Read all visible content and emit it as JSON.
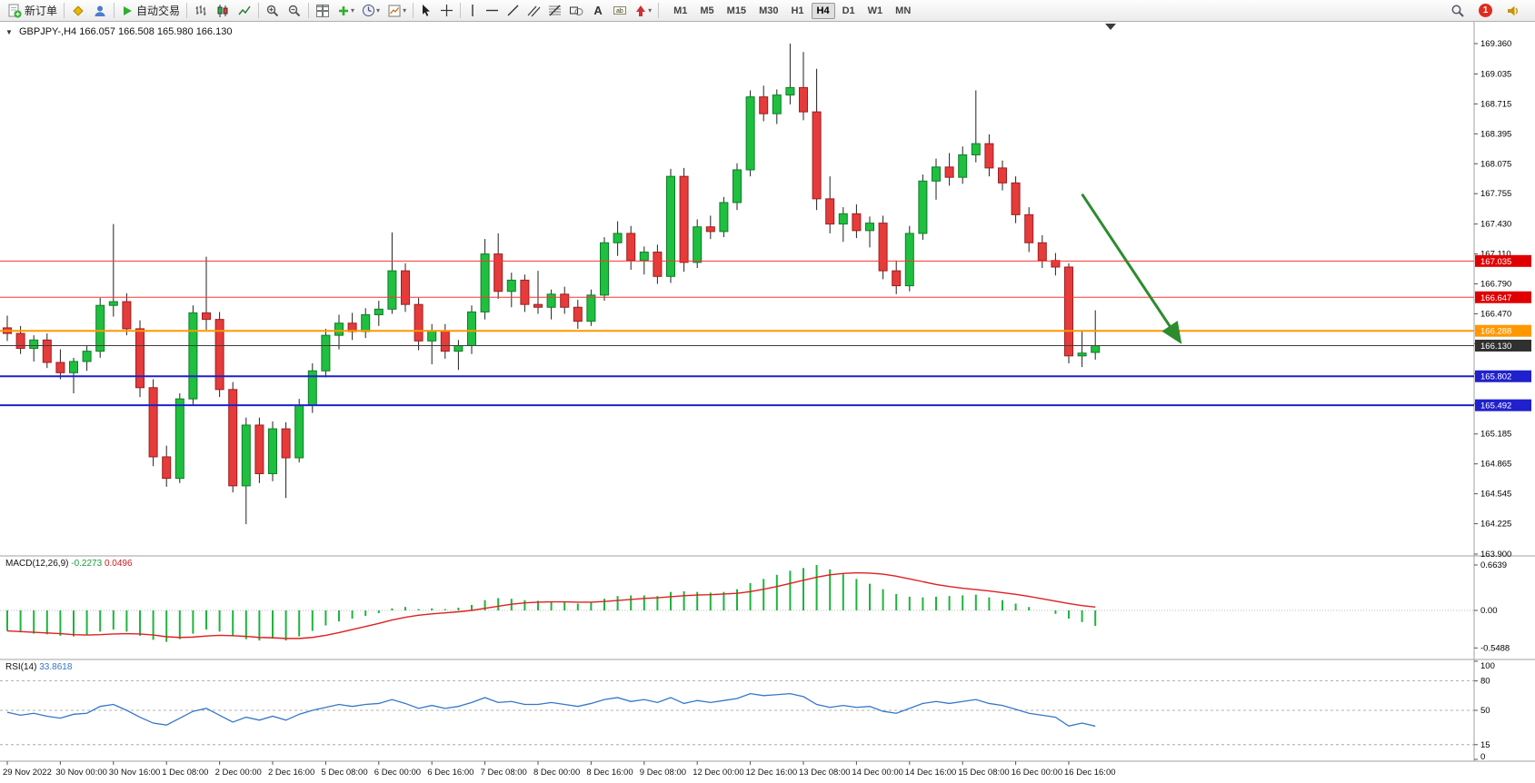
{
  "toolbar": {
    "groups": [
      {
        "items": [
          {
            "name": "new-order-button",
            "icon": "doc-plus",
            "label": "新订单"
          }
        ]
      },
      {
        "items": [
          {
            "name": "metaeditor-icon",
            "icon": "diamond"
          },
          {
            "name": "profiles-icon",
            "icon": "profile"
          }
        ]
      },
      {
        "items": [
          {
            "name": "autotrading-button",
            "icon": "play",
            "label": "自动交易"
          }
        ]
      },
      {
        "items": [
          {
            "name": "bar-chart-icon",
            "icon": "bars"
          },
          {
            "name": "candlestick-chart-icon",
            "icon": "candles"
          },
          {
            "name": "line-chart-icon",
            "icon": "linechart"
          }
        ]
      },
      {
        "items": [
          {
            "name": "zoom-in-icon",
            "icon": "zoom-in"
          },
          {
            "name": "zoom-out-icon",
            "icon": "zoom-out"
          }
        ]
      },
      {
        "items": [
          {
            "name": "tile-windows-icon",
            "icon": "tile"
          },
          {
            "name": "indicators-icon",
            "icon": "plus-green",
            "caret": true
          },
          {
            "name": "periods-icon",
            "icon": "clock",
            "caret": true
          },
          {
            "name": "templates-icon",
            "icon": "template",
            "caret": true
          }
        ]
      },
      {
        "items": [
          {
            "name": "cursor-icon",
            "icon": "cursor"
          },
          {
            "name": "crosshair-icon",
            "icon": "crosshair"
          }
        ]
      },
      {
        "items": [
          {
            "name": "vertical-line-icon",
            "icon": "vline"
          },
          {
            "name": "horizontal-line-icon",
            "icon": "hline"
          },
          {
            "name": "trendline-icon",
            "icon": "tline"
          },
          {
            "name": "equidistant-channel-icon",
            "icon": "channel"
          },
          {
            "name": "fibonacci-icon",
            "icon": "fibo"
          },
          {
            "name": "shapes-icon",
            "icon": "shapes"
          },
          {
            "name": "text-icon",
            "icon": "textA"
          },
          {
            "name": "label-icon",
            "icon": "label"
          },
          {
            "name": "arrows-icon",
            "icon": "arrowstyle",
            "caret": true
          }
        ]
      }
    ],
    "timeframes": [
      "M1",
      "M5",
      "M15",
      "M30",
      "H1",
      "H4",
      "D1",
      "W1",
      "MN"
    ],
    "active_timeframe": "H4",
    "right": [
      {
        "name": "search-icon",
        "icon": "search"
      },
      {
        "name": "notification-badge",
        "badge": "1"
      },
      {
        "name": "alerts-icon",
        "icon": "speaker"
      }
    ]
  },
  "chart_data": {
    "type": "candlestick",
    "title": "GBPJPY-,H4",
    "ohlc_text": "166.057 166.508 165.980 166.130",
    "current_bar": {
      "open": 166.057,
      "high": 166.508,
      "low": 165.98,
      "close": 166.13
    },
    "colors": {
      "bull": "#1fbf3f",
      "bull_border": "#0e7d28",
      "bear": "#e53b3b",
      "bear_border": "#9e1f1f",
      "wick": "#222222",
      "signal_line": "#e02020",
      "macd_hist": "#1db53c",
      "rsi_line": "#3577c8",
      "arrow": "#2e8b2e",
      "resistance": "#ff3333",
      "support": "#2020cc",
      "pivot": "#ff9800",
      "price_line": "#3c3c3c"
    },
    "price_axis": {
      "max": 169.36,
      "min": 163.9,
      "ticks": [
        169.36,
        169.035,
        168.715,
        168.395,
        168.075,
        167.755,
        167.43,
        167.11,
        166.79,
        166.47,
        166.15,
        165.83,
        165.51,
        165.185,
        164.865,
        164.545,
        164.225,
        163.9
      ]
    },
    "hlines": [
      {
        "price": 167.035,
        "badge": "167.035",
        "color": "#ff3333",
        "width": 1,
        "badge_bg": "#e00000"
      },
      {
        "price": 166.647,
        "badge": "166.647",
        "color": "#ff3333",
        "width": 1,
        "badge_bg": "#e00000"
      },
      {
        "price": 166.288,
        "badge": "166.288",
        "color": "#ff9800",
        "width": 2,
        "badge_bg": "#ff9800"
      },
      {
        "price": 166.13,
        "badge": "166.130",
        "color": "#3c3c3c",
        "width": 1,
        "badge_bg": "#303030"
      },
      {
        "price": 165.802,
        "badge": "165.802",
        "color": "#2020cc",
        "width": 2,
        "badge_bg": "#2020cc"
      },
      {
        "price": 165.492,
        "badge": "165.492",
        "color": "#2020cc",
        "width": 2,
        "badge_bg": "#2020cc"
      }
    ],
    "trend_arrow": {
      "start_bar": 81,
      "start_price": 167.75,
      "end_bar": 88.4,
      "end_price": 166.17
    },
    "time_labels": [
      "29 Nov 2022",
      "30 Nov 00:00",
      "30 Nov 16:00",
      "1 Dec 08:00",
      "2 Dec 00:00",
      "2 Dec 16:00",
      "5 Dec 08:00",
      "6 Dec 00:00",
      "6 Dec 16:00",
      "7 Dec 08:00",
      "8 Dec 00:00",
      "8 Dec 16:00",
      "9 Dec 08:00",
      "12 Dec 00:00",
      "12 Dec 16:00",
      "13 Dec 08:00",
      "14 Dec 00:00",
      "14 Dec 16:00",
      "15 Dec 08:00",
      "16 Dec 00:00",
      "16 Dec 16:00"
    ],
    "candles": [
      [
        166.32,
        166.45,
        166.18,
        166.26
      ],
      [
        166.26,
        166.34,
        166.04,
        166.1
      ],
      [
        166.1,
        166.24,
        165.96,
        166.19
      ],
      [
        166.19,
        166.26,
        165.89,
        165.95
      ],
      [
        165.95,
        166.09,
        165.77,
        165.84
      ],
      [
        165.84,
        166.0,
        165.62,
        165.96
      ],
      [
        165.96,
        166.13,
        165.86,
        166.07
      ],
      [
        166.07,
        166.64,
        166.0,
        166.56
      ],
      [
        166.56,
        167.43,
        166.44,
        166.6
      ],
      [
        166.6,
        166.69,
        166.24,
        166.31
      ],
      [
        166.31,
        166.4,
        165.58,
        165.68
      ],
      [
        165.68,
        165.77,
        164.84,
        164.94
      ],
      [
        164.94,
        165.06,
        164.62,
        164.71
      ],
      [
        164.71,
        165.62,
        164.66,
        165.56
      ],
      [
        165.56,
        166.56,
        165.5,
        166.48
      ],
      [
        166.48,
        167.08,
        166.3,
        166.41
      ],
      [
        166.41,
        166.49,
        165.58,
        165.66
      ],
      [
        165.66,
        165.74,
        164.56,
        164.63
      ],
      [
        164.63,
        165.36,
        164.22,
        165.28
      ],
      [
        165.28,
        165.36,
        164.66,
        164.76
      ],
      [
        164.76,
        165.32,
        164.68,
        165.24
      ],
      [
        165.24,
        165.31,
        164.5,
        164.93
      ],
      [
        164.93,
        165.56,
        164.88,
        165.49
      ],
      [
        165.49,
        165.94,
        165.41,
        165.86
      ],
      [
        165.86,
        166.31,
        165.79,
        166.24
      ],
      [
        166.24,
        166.46,
        166.09,
        166.37
      ],
      [
        166.37,
        166.48,
        166.19,
        166.28
      ],
      [
        166.28,
        166.53,
        166.21,
        166.46
      ],
      [
        166.46,
        166.61,
        166.34,
        166.52
      ],
      [
        166.52,
        167.34,
        166.47,
        166.93
      ],
      [
        166.93,
        167.01,
        166.49,
        166.57
      ],
      [
        166.57,
        166.64,
        166.08,
        166.18
      ],
      [
        166.18,
        166.36,
        165.93,
        166.29
      ],
      [
        166.29,
        166.36,
        165.99,
        166.07
      ],
      [
        166.07,
        166.19,
        165.87,
        166.13
      ],
      [
        166.13,
        166.56,
        166.04,
        166.49
      ],
      [
        166.49,
        167.27,
        166.41,
        167.11
      ],
      [
        167.11,
        167.33,
        166.63,
        166.71
      ],
      [
        166.71,
        166.91,
        166.54,
        166.83
      ],
      [
        166.83,
        166.89,
        166.49,
        166.57
      ],
      [
        166.57,
        166.93,
        166.47,
        166.54
      ],
      [
        166.54,
        166.73,
        166.41,
        166.68
      ],
      [
        166.68,
        166.76,
        166.47,
        166.54
      ],
      [
        166.54,
        166.62,
        166.31,
        166.39
      ],
      [
        166.39,
        166.73,
        166.34,
        166.67
      ],
      [
        166.67,
        167.29,
        166.61,
        167.23
      ],
      [
        167.23,
        167.46,
        167.09,
        167.33
      ],
      [
        167.33,
        167.41,
        166.94,
        167.04
      ],
      [
        167.04,
        167.19,
        166.89,
        167.13
      ],
      [
        167.13,
        167.21,
        166.79,
        166.87
      ],
      [
        166.87,
        168.02,
        166.8,
        167.94
      ],
      [
        167.94,
        168.03,
        166.92,
        167.02
      ],
      [
        167.02,
        167.48,
        166.96,
        167.4
      ],
      [
        167.4,
        167.52,
        167.27,
        167.35
      ],
      [
        167.35,
        167.72,
        167.29,
        167.66
      ],
      [
        167.66,
        168.08,
        167.58,
        168.01
      ],
      [
        168.01,
        168.86,
        167.94,
        168.79
      ],
      [
        168.79,
        168.91,
        168.53,
        168.61
      ],
      [
        168.61,
        168.87,
        168.5,
        168.81
      ],
      [
        168.81,
        169.36,
        168.71,
        168.89
      ],
      [
        168.89,
        169.27,
        168.54,
        168.63
      ],
      [
        168.63,
        169.09,
        167.58,
        167.7
      ],
      [
        167.7,
        167.94,
        167.33,
        167.43
      ],
      [
        167.43,
        167.61,
        167.24,
        167.54
      ],
      [
        167.54,
        167.64,
        167.28,
        167.36
      ],
      [
        167.36,
        167.51,
        167.18,
        167.44
      ],
      [
        167.44,
        167.52,
        166.84,
        166.93
      ],
      [
        166.93,
        167.04,
        166.68,
        166.77
      ],
      [
        166.77,
        167.41,
        166.71,
        167.33
      ],
      [
        167.33,
        167.96,
        167.26,
        167.89
      ],
      [
        167.89,
        168.13,
        167.69,
        168.04
      ],
      [
        168.04,
        168.19,
        167.84,
        167.93
      ],
      [
        167.93,
        168.26,
        167.86,
        168.17
      ],
      [
        168.17,
        168.86,
        168.09,
        168.29
      ],
      [
        168.29,
        168.39,
        167.94,
        168.03
      ],
      [
        168.03,
        168.11,
        167.79,
        167.87
      ],
      [
        167.87,
        167.94,
        167.44,
        167.53
      ],
      [
        167.53,
        167.61,
        167.13,
        167.23
      ],
      [
        167.23,
        167.31,
        166.96,
        167.04
      ],
      [
        167.04,
        167.12,
        166.88,
        166.97
      ],
      [
        166.97,
        167.01,
        165.94,
        166.02
      ],
      [
        166.02,
        166.28,
        165.9,
        166.05
      ],
      [
        166.057,
        166.508,
        165.98,
        166.13
      ]
    ],
    "macd": {
      "name": "MACD(12,26,9)",
      "value_main": "-0.2273",
      "value_signal": "0.0496",
      "axis": [
        {
          "v": 0.6639,
          "t": "0.6639"
        },
        {
          "v": 0,
          "t": "0.00"
        },
        {
          "v": -0.5488,
          "t": "-0.5488"
        }
      ],
      "histogram": [
        -0.3,
        -0.32,
        -0.34,
        -0.35,
        -0.37,
        -0.38,
        -0.36,
        -0.31,
        -0.28,
        -0.31,
        -0.37,
        -0.43,
        -0.46,
        -0.42,
        -0.34,
        -0.28,
        -0.31,
        -0.38,
        -0.42,
        -0.44,
        -0.41,
        -0.44,
        -0.38,
        -0.3,
        -0.22,
        -0.16,
        -0.12,
        -0.08,
        -0.04,
        0.03,
        0.05,
        0.02,
        0.03,
        0.02,
        0.04,
        0.08,
        0.15,
        0.18,
        0.17,
        0.15,
        0.14,
        0.13,
        0.12,
        0.1,
        0.12,
        0.17,
        0.21,
        0.22,
        0.22,
        0.21,
        0.27,
        0.28,
        0.27,
        0.26,
        0.27,
        0.31,
        0.4,
        0.46,
        0.52,
        0.58,
        0.62,
        0.664,
        0.6,
        0.53,
        0.46,
        0.39,
        0.31,
        0.24,
        0.2,
        0.19,
        0.2,
        0.21,
        0.22,
        0.23,
        0.19,
        0.15,
        0.1,
        0.05,
        0.0,
        -0.05,
        -0.12,
        -0.17,
        -0.2273
      ],
      "signal": [
        -0.3,
        -0.31,
        -0.32,
        -0.33,
        -0.34,
        -0.355,
        -0.36,
        -0.355,
        -0.345,
        -0.34,
        -0.345,
        -0.36,
        -0.385,
        -0.395,
        -0.39,
        -0.375,
        -0.365,
        -0.37,
        -0.38,
        -0.395,
        -0.4,
        -0.41,
        -0.41,
        -0.395,
        -0.365,
        -0.325,
        -0.28,
        -0.235,
        -0.19,
        -0.14,
        -0.1,
        -0.07,
        -0.05,
        -0.035,
        -0.02,
        0.0,
        0.03,
        0.06,
        0.09,
        0.11,
        0.12,
        0.125,
        0.125,
        0.12,
        0.12,
        0.13,
        0.145,
        0.16,
        0.175,
        0.185,
        0.2,
        0.215,
        0.225,
        0.23,
        0.24,
        0.25,
        0.275,
        0.31,
        0.35,
        0.395,
        0.44,
        0.485,
        0.52,
        0.54,
        0.55,
        0.545,
        0.53,
        0.5,
        0.46,
        0.42,
        0.38,
        0.35,
        0.325,
        0.305,
        0.285,
        0.26,
        0.235,
        0.205,
        0.17,
        0.135,
        0.1,
        0.07,
        0.0496
      ]
    },
    "rsi": {
      "name": "RSI(14)",
      "value": "33.8618",
      "levels": [
        {
          "v": 100,
          "t": "100",
          "dashed": false
        },
        {
          "v": 80,
          "t": "80",
          "dashed": true
        },
        {
          "v": 50,
          "t": "50",
          "dashed": true
        },
        {
          "v": 15,
          "t": "15",
          "dashed": true
        },
        {
          "v": 0,
          "t": "0",
          "dashed": false
        }
      ],
      "series": [
        48,
        45,
        47,
        44,
        42,
        46,
        47,
        54,
        56,
        50,
        43,
        37,
        35,
        42,
        49,
        52,
        45,
        38,
        43,
        40,
        44,
        40,
        46,
        50,
        53,
        56,
        54,
        56,
        57,
        61,
        57,
        52,
        55,
        52,
        54,
        58,
        63,
        58,
        59,
        56,
        56,
        58,
        56,
        54,
        57,
        61,
        63,
        59,
        61,
        58,
        63,
        57,
        60,
        58,
        60,
        62,
        67,
        65,
        66,
        67,
        64,
        56,
        53,
        55,
        53,
        54,
        49,
        47,
        52,
        57,
        59,
        57,
        59,
        61,
        57,
        55,
        51,
        47,
        45,
        43,
        34,
        37,
        33.86
      ]
    }
  }
}
